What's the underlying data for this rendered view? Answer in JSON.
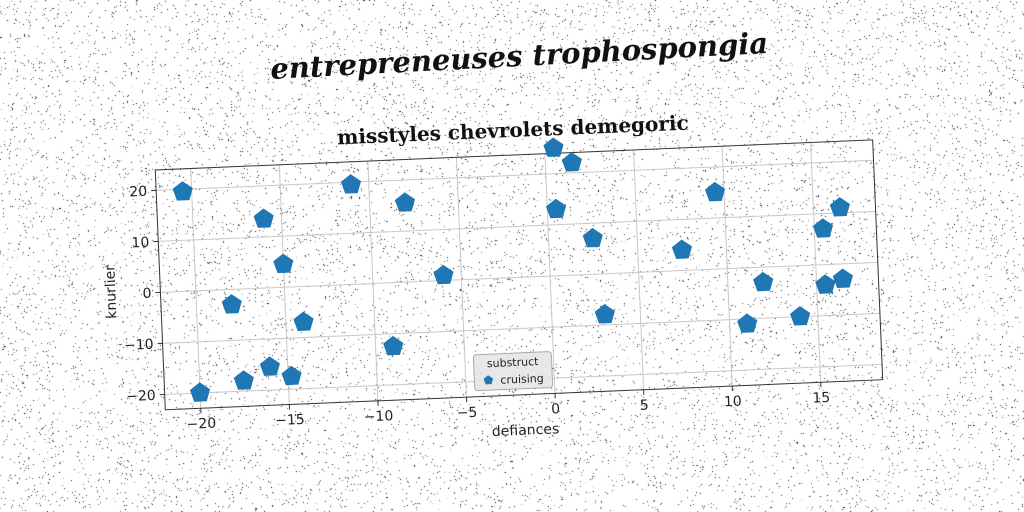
{
  "suptitle": "entrepreneuses trophospongia",
  "chart_data": {
    "type": "scatter",
    "title": "misstyles chevrolets demegoric",
    "xlabel": "defiances",
    "ylabel": "knurlier",
    "xlim": [
      -22,
      18.5
    ],
    "ylim": [
      -23,
      24
    ],
    "xticks": [
      -20,
      -15,
      -10,
      -5,
      0,
      5,
      10,
      15
    ],
    "yticks": [
      -20,
      -10,
      0,
      10,
      20
    ],
    "grid": true,
    "legend": {
      "title": "substruct",
      "placement": "lower-center"
    },
    "series": [
      {
        "name": "cruising",
        "color": "#1f77b4",
        "marker": "pentagon",
        "points": [
          [
            -20.5,
            19.5
          ],
          [
            -20,
            -20
          ],
          [
            -18,
            -3
          ],
          [
            -17.5,
            -18
          ],
          [
            -16,
            13.5
          ],
          [
            -16,
            -15.5
          ],
          [
            -15,
            4.5
          ],
          [
            -14.8,
            -17.5
          ],
          [
            -14,
            -7
          ],
          [
            -11,
            19.5
          ],
          [
            -9,
            -12.5
          ],
          [
            -8,
            15.5
          ],
          [
            -6,
            1
          ],
          [
            0.5,
            25
          ],
          [
            0.5,
            13
          ],
          [
            1.5,
            22
          ],
          [
            2.5,
            7
          ],
          [
            3,
            -8
          ],
          [
            7.5,
            4
          ],
          [
            9.5,
            15
          ],
          [
            11,
            -11
          ],
          [
            12,
            -3
          ],
          [
            14,
            -10
          ],
          [
            15.5,
            7
          ],
          [
            15.5,
            -4
          ],
          [
            16.5,
            11
          ],
          [
            16.5,
            -3
          ]
        ]
      }
    ]
  }
}
